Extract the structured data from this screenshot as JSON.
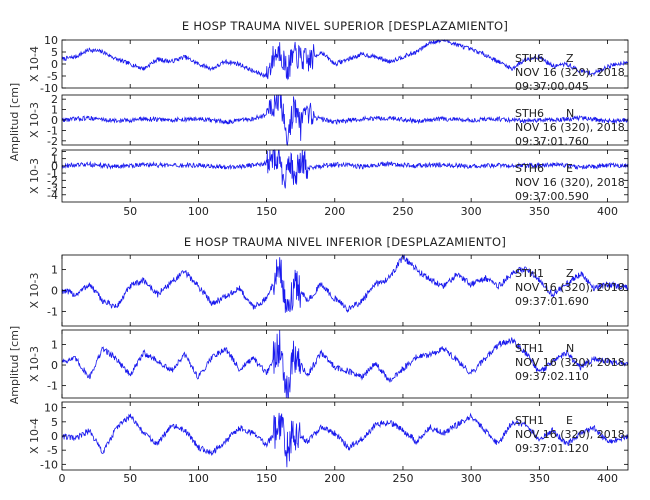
{
  "chart_data": [
    {
      "type": "line",
      "title": "E HOSP TRAUMA NIVEL SUPERIOR [DESPLAZAMIENTO]",
      "ylabel": "Amplitud [cm]",
      "xlim": [
        0,
        415
      ],
      "xticks": [
        50,
        100,
        150,
        200,
        250,
        300,
        350,
        400
      ],
      "panels": [
        {
          "station": "STH6",
          "component": "Z",
          "date": "NOV 16 (320), 2018",
          "time": "09:37:00.045",
          "scale": "X 10-4",
          "ylim": [
            -10,
            10
          ],
          "yticks": [
            10,
            5,
            0,
            -5,
            -10
          ],
          "series": [
            {
              "x": [
                0,
                10,
                20,
                30,
                40,
                50,
                60,
                70,
                80,
                90,
                100,
                110,
                120,
                130,
                140,
                150,
                155,
                160,
                165,
                170,
                180,
                190,
                200,
                210,
                220,
                230,
                240,
                250,
                260,
                270,
                280,
                290,
                300,
                310,
                320,
                330,
                340,
                350,
                360,
                370,
                380,
                390,
                400,
                415
              ],
              "values": [
                2,
                3,
                6,
                5,
                2,
                0,
                -2,
                2,
                1,
                3,
                0,
                -2,
                1,
                0,
                -3,
                -5,
                3,
                6,
                -3,
                4,
                1,
                5,
                0,
                2,
                4,
                3,
                1,
                3,
                5,
                9,
                10,
                8,
                6,
                4,
                1,
                -2,
                2,
                3,
                -1,
                0,
                -3,
                -4,
                -1,
                1
              ],
              "burst": [
                150,
                185
              ]
            }
          ]
        },
        {
          "station": "STH6",
          "component": "N",
          "date": "NOV 16 (320), 2018",
          "time": "09:37:01.760",
          "scale": "X 10-3",
          "ylim": [
            -2.4,
            2.4
          ],
          "yticks": [
            2,
            1,
            0,
            -1,
            -2
          ],
          "series": [
            {
              "x": [
                0,
                20,
                40,
                60,
                80,
                100,
                120,
                140,
                150,
                155,
                160,
                165,
                170,
                175,
                180,
                200,
                220,
                240,
                260,
                280,
                300,
                320,
                340,
                360,
                380,
                400,
                415
              ],
              "values": [
                0,
                0.2,
                -0.1,
                0.1,
                0,
                0.1,
                -0.2,
                0.1,
                0.5,
                1.5,
                2.2,
                -2.1,
                1.4,
                -0.7,
                0.4,
                -0.2,
                0.1,
                0.2,
                -0.1,
                0.1,
                0,
                0.1,
                -0.1,
                0,
                0.2,
                -0.1,
                0
              ],
              "burst": [
                150,
                185
              ]
            }
          ]
        },
        {
          "station": "STH6",
          "component": "E",
          "date": "NOV 16 (320), 2018",
          "time": "09:37:00.590",
          "scale": "X 10-3",
          "ylim": [
            -5,
            2.2
          ],
          "yticks": [
            2,
            1,
            0,
            -1,
            -2,
            -3,
            -4
          ],
          "series": [
            {
              "x": [
                0,
                20,
                40,
                60,
                80,
                100,
                120,
                140,
                150,
                155,
                160,
                163,
                166,
                170,
                175,
                180,
                200,
                220,
                240,
                260,
                280,
                300,
                320,
                340,
                360,
                380,
                400,
                415
              ],
              "values": [
                0,
                0.2,
                -0.1,
                0.2,
                0,
                0.1,
                -0.2,
                0.1,
                0.4,
                1.1,
                1.6,
                -4.1,
                1.2,
                -1.5,
                0.6,
                -0.3,
                0.2,
                -0.1,
                0.3,
                0,
                0.2,
                -0.1,
                0.1,
                0,
                0.2,
                -0.2,
                0.1,
                0
              ],
              "burst": [
                150,
                180
              ]
            }
          ]
        }
      ]
    },
    {
      "type": "line",
      "title": "E HOSP TRAUMA NIVEL INFERIOR [DESPLAZAMIENTO]",
      "ylabel": "Amplitud [cm]",
      "xlim": [
        0,
        415
      ],
      "xticks": [
        0,
        50,
        100,
        150,
        200,
        250,
        300,
        350,
        400
      ],
      "panels": [
        {
          "station": "STH1",
          "component": "Z",
          "date": "NOV 16 (320), 2018",
          "time": "09:37:01.690",
          "scale": "X 10-3",
          "ylim": [
            -1.7,
            1.7
          ],
          "yticks": [
            1,
            0,
            -1
          ],
          "series": [
            {
              "x": [
                0,
                10,
                20,
                30,
                40,
                50,
                60,
                70,
                80,
                90,
                100,
                110,
                120,
                130,
                140,
                150,
                160,
                165,
                170,
                180,
                190,
                200,
                210,
                220,
                230,
                240,
                250,
                260,
                270,
                280,
                290,
                300,
                310,
                320,
                330,
                340,
                350,
                360,
                370,
                380,
                390,
                400,
                415
              ],
              "values": [
                0,
                -0.2,
                0.3,
                -0.5,
                -0.8,
                0.2,
                0.5,
                -0.2,
                0.4,
                0.9,
                0.2,
                -0.6,
                -0.3,
                0.1,
                -0.8,
                -0.4,
                1.2,
                -1.4,
                0.4,
                -0.5,
                0.3,
                -0.4,
                -0.9,
                -0.5,
                0.3,
                0.6,
                1.6,
                1.0,
                0.5,
                0.2,
                0.8,
                0.3,
                0.6,
                0.2,
                0.8,
                1.1,
                0.5,
                -0.2,
                0.3,
                0.8,
                0.1,
                0.3,
                0.1
              ],
              "burst": [
                155,
                175
              ]
            }
          ]
        },
        {
          "station": "STH1",
          "component": "N",
          "date": "NOV 16 (320), 2018",
          "time": "09:37:02.110",
          "scale": "X 10-3",
          "ylim": [
            -1.6,
            1.7
          ],
          "yticks": [
            1,
            0,
            -1
          ],
          "series": [
            {
              "x": [
                0,
                10,
                20,
                30,
                40,
                50,
                60,
                70,
                80,
                90,
                100,
                110,
                120,
                130,
                140,
                150,
                160,
                165,
                170,
                180,
                190,
                200,
                210,
                220,
                230,
                240,
                250,
                260,
                270,
                280,
                290,
                300,
                310,
                320,
                330,
                340,
                350,
                360,
                370,
                380,
                390,
                400,
                415
              ],
              "values": [
                0.2,
                0.3,
                -0.6,
                0.8,
                0.3,
                -0.5,
                0.6,
                0.2,
                -0.3,
                0.5,
                -0.6,
                0.4,
                0.8,
                -0.2,
                0.3,
                -0.4,
                1.0,
                -1.2,
                0.5,
                -0.5,
                0.6,
                -0.1,
                -0.3,
                -0.6,
                0.1,
                -0.8,
                -0.2,
                0.4,
                0.5,
                0.8,
                0.2,
                -0.4,
                0.3,
                1.0,
                1.2,
                0.6,
                -0.4,
                0.2,
                0.6,
                -0.1,
                0.3,
                0.2,
                0.1
              ],
              "burst": [
                155,
                175
              ]
            }
          ]
        },
        {
          "station": "STH1",
          "component": "E",
          "date": "NOV 16 (320), 2018",
          "time": "09:37:01.120",
          "scale": "X 10-4",
          "ylim": [
            -12,
            12
          ],
          "yticks": [
            10,
            5,
            0,
            -5,
            -10
          ],
          "series": [
            {
              "x": [
                0,
                10,
                20,
                30,
                40,
                50,
                60,
                70,
                80,
                90,
                100,
                110,
                120,
                130,
                140,
                150,
                160,
                165,
                170,
                180,
                190,
                200,
                210,
                220,
                230,
                240,
                250,
                260,
                270,
                280,
                290,
                300,
                310,
                320,
                330,
                340,
                350,
                360,
                370,
                380,
                390,
                400,
                415
              ],
              "values": [
                0,
                -1,
                2,
                -6,
                3,
                7,
                1,
                -3,
                4,
                2,
                -4,
                -6,
                -2,
                3,
                1,
                -3,
                4,
                -5,
                2,
                -2,
                3,
                1,
                -4,
                -1,
                4,
                5,
                2,
                -2,
                3,
                1,
                4,
                7,
                2,
                -3,
                5,
                4,
                -1,
                2,
                -3,
                1,
                3,
                -2,
                0
              ],
              "burst": [
                155,
                175
              ]
            }
          ]
        }
      ]
    }
  ]
}
